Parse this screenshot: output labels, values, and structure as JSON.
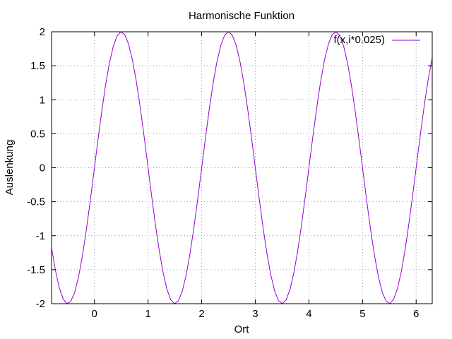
{
  "chart_data": {
    "type": "line",
    "title": "Harmonische Funktion",
    "xlabel": "Ort",
    "ylabel": "Auslenkung",
    "xlim": [
      -0.8,
      6.3
    ],
    "ylim": [
      -2,
      2
    ],
    "xticks": [
      0,
      1,
      2,
      3,
      4,
      5,
      6
    ],
    "yticks": [
      -2,
      -1.5,
      -1,
      -0.5,
      0,
      0.5,
      1,
      1.5,
      2
    ],
    "xtick_labels": [
      "0",
      "1",
      "2",
      "3",
      "4",
      "5",
      "6"
    ],
    "ytick_labels": [
      "-2",
      "-1.5",
      "-1",
      "-0.5",
      "0",
      "0.5",
      "1",
      "1.5",
      "2"
    ],
    "grid": true,
    "legend_position": "top-right",
    "series": [
      {
        "name": "f(x,i*0.025)",
        "color": "#9400d3",
        "function": "2*sin(pi*x)",
        "x_range": [
          -0.8,
          6.3
        ],
        "samples": 100
      }
    ]
  }
}
